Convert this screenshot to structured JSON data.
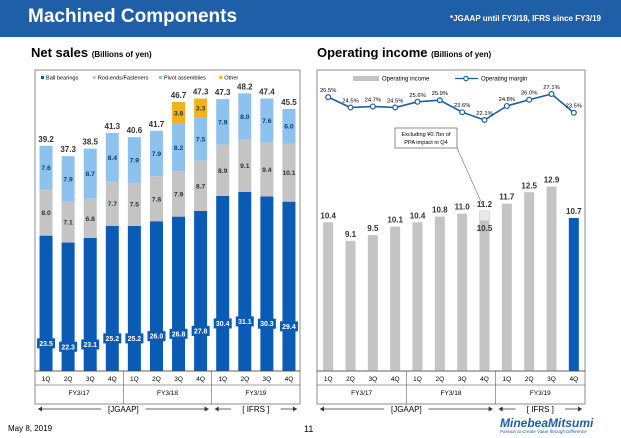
{
  "page": {
    "title": "Machined Components",
    "note": "*JGAAP until FY3/18, IFRS since FY3/19",
    "date": "May 8, 2019",
    "page_number": "11",
    "logo_name": "MinebeaMitsumi",
    "logo_tagline": "Passion to Create Value through Difference"
  },
  "chart_data": [
    {
      "type": "bar",
      "stacked": true,
      "title": "Net sales",
      "unit": "(Billions of yen)",
      "categories": [
        "1Q",
        "2Q",
        "3Q",
        "4Q",
        "1Q",
        "2Q",
        "3Q",
        "4Q",
        "1Q",
        "2Q",
        "3Q",
        "4Q"
      ],
      "fiscal_years": [
        {
          "label": "FY3/17",
          "from": 0,
          "to": 3
        },
        {
          "label": "FY3/18",
          "from": 4,
          "to": 7
        },
        {
          "label": "FY3/19",
          "from": 8,
          "to": 11
        }
      ],
      "standards": [
        {
          "label": "[JGAAP]",
          "from": 0,
          "to": 7
        },
        {
          "label": "[ IFRS ]",
          "from": 8,
          "to": 11
        }
      ],
      "series": [
        {
          "name": "Ball bearings",
          "color": "#0a5bb4",
          "values": [
            23.5,
            22.3,
            23.1,
            25.2,
            25.2,
            26.0,
            26.8,
            27.8,
            30.4,
            31.1,
            30.3,
            29.4
          ]
        },
        {
          "name": "Rod-ends/Fasteners",
          "color": "#c4c4c4",
          "values": [
            8.0,
            7.1,
            6.8,
            7.7,
            7.5,
            7.8,
            7.9,
            8.7,
            8.9,
            9.1,
            9.4,
            10.1
          ]
        },
        {
          "name": "Pivot assemblies",
          "color": "#8ec2ee",
          "values": [
            7.6,
            7.9,
            8.7,
            8.4,
            7.9,
            7.9,
            8.2,
            7.5,
            7.9,
            8.0,
            7.6,
            6.0
          ]
        },
        {
          "name": "Other",
          "color": "#f2b21e",
          "values": [
            0,
            0,
            0,
            0,
            0,
            0,
            3.8,
            3.3,
            0,
            0,
            0,
            0
          ]
        }
      ],
      "totals": [
        39.2,
        37.3,
        38.5,
        41.3,
        40.6,
        41.7,
        46.7,
        47.3,
        47.3,
        48.2,
        47.4,
        45.5
      ],
      "ylim": [
        0,
        55
      ]
    },
    {
      "type": "bar+line",
      "title": "Operating income",
      "unit": "(Billions of yen)",
      "categories": [
        "1Q",
        "2Q",
        "3Q",
        "4Q",
        "1Q",
        "2Q",
        "3Q",
        "4Q",
        "1Q",
        "2Q",
        "3Q",
        "4Q"
      ],
      "fiscal_years": [
        {
          "label": "FY3/17",
          "from": 0,
          "to": 3
        },
        {
          "label": "FY3/18",
          "from": 4,
          "to": 7
        },
        {
          "label": "FY3/19",
          "from": 8,
          "to": 11
        }
      ],
      "standards": [
        {
          "label": "[JGAAP]",
          "from": 0,
          "to": 7
        },
        {
          "label": "[ IFRS ]",
          "from": 8,
          "to": 11
        }
      ],
      "legend": [
        "Operating income",
        "Operating margin"
      ],
      "operating_income": [
        10.4,
        9.1,
        9.5,
        10.1,
        10.4,
        10.8,
        11.0,
        10.5,
        11.7,
        12.5,
        12.9,
        10.7
      ],
      "adjusted_4q_fy18": 11.2,
      "operating_margin": [
        "26.5%",
        "24.5%",
        "24.7%",
        "24.5%",
        "25.6%",
        "25.9%",
        "23.6%",
        "22.1%",
        "24.8%",
        "26.0%",
        "27.1%",
        "23.5%"
      ],
      "annotation": "Excluding ¥0.7bn of PPA impact in Q4",
      "ylim": [
        0,
        15
      ],
      "colors": {
        "bar": "#c4c4c4",
        "last_bar": "#0a5bb4",
        "line": "#1a5fa8"
      }
    }
  ]
}
